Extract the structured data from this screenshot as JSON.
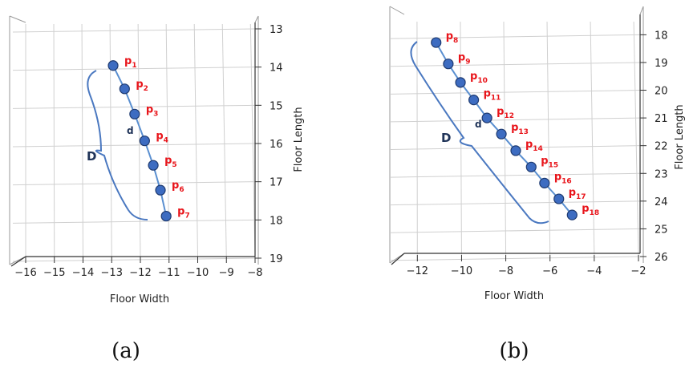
{
  "chart_data": [
    {
      "type": "line",
      "panel": "(a)",
      "xlabel": "Floor Width",
      "ylabel": "Floor Length",
      "xlim": [
        -16,
        -8
      ],
      "ylim": [
        19,
        13
      ],
      "xticks": [
        "−16",
        "−15",
        "−14",
        "−13",
        "−12",
        "−11",
        "−10",
        "−9",
        "−8"
      ],
      "yticks": [
        "13",
        "14",
        "15",
        "16",
        "17",
        "18",
        "19"
      ],
      "points": [
        {
          "id": "1",
          "x": -12.95,
          "y": 13.96
        },
        {
          "id": "2",
          "x": -12.55,
          "y": 14.57
        },
        {
          "id": "3",
          "x": -12.2,
          "y": 15.23
        },
        {
          "id": "4",
          "x": -11.85,
          "y": 15.93
        },
        {
          "id": "5",
          "x": -11.55,
          "y": 16.57
        },
        {
          "id": "6",
          "x": -11.3,
          "y": 17.22
        },
        {
          "id": "7",
          "x": -11.1,
          "y": 17.9
        }
      ],
      "annotations": {
        "small": "d",
        "big": "D"
      },
      "line_color": "#5a8fd0",
      "marker_color": "#3d6cc1",
      "label_color": "#e8141a"
    },
    {
      "type": "line",
      "panel": "(b)",
      "xlabel": "Floor Width",
      "ylabel": "Floor Length",
      "xlim": [
        -12.7,
        -2
      ],
      "ylim": [
        26,
        17.7
      ],
      "xticks": [
        "−12",
        "−10",
        "−8",
        "−6",
        "−4",
        "−2"
      ],
      "yticks": [
        "18",
        "19",
        "20",
        "21",
        "22",
        "23",
        "24",
        "25",
        "26"
      ],
      "points": [
        {
          "id": "8",
          "x": -11.15,
          "y": 18.28
        },
        {
          "id": "9",
          "x": -10.6,
          "y": 19.05
        },
        {
          "id": "10",
          "x": -10.05,
          "y": 19.72
        },
        {
          "id": "11",
          "x": -9.45,
          "y": 20.35
        },
        {
          "id": "12",
          "x": -8.85,
          "y": 21.0
        },
        {
          "id": "13",
          "x": -8.2,
          "y": 21.58
        },
        {
          "id": "14",
          "x": -7.55,
          "y": 22.18
        },
        {
          "id": "15",
          "x": -6.85,
          "y": 22.77
        },
        {
          "id": "16",
          "x": -6.25,
          "y": 23.35
        },
        {
          "id": "17",
          "x": -5.6,
          "y": 23.92
        },
        {
          "id": "18",
          "x": -5.0,
          "y": 24.5
        }
      ],
      "annotations": {
        "small": "d",
        "big": "D"
      },
      "line_color": "#5a8fd0",
      "marker_color": "#3d6cc1",
      "label_color": "#e8141a"
    }
  ],
  "captions": {
    "a": "(a)",
    "b": "(b)"
  },
  "point_prefix": "p"
}
